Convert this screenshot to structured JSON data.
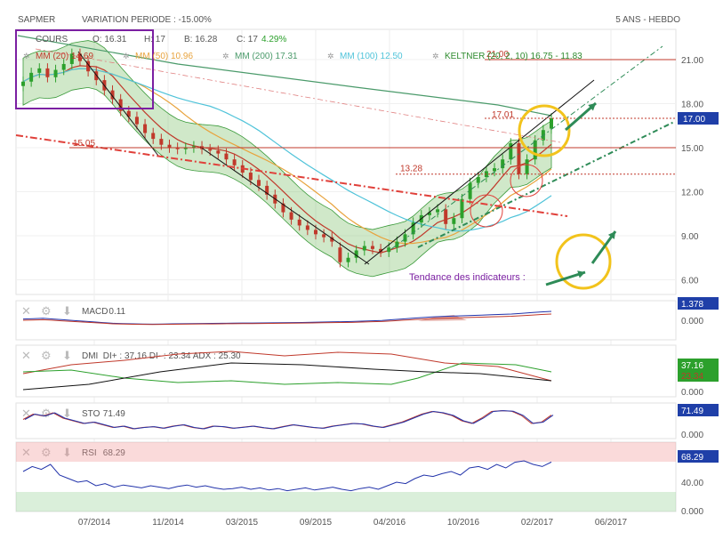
{
  "header": {
    "symbol": "SAPMER",
    "variation_label": "VARIATION PERIODE : -15.00%",
    "period_label": "5 ANS - HEBDO"
  },
  "ohlc": {
    "cours_label": "COURS",
    "open_label": "O: 16.31",
    "high_label": "H: 17",
    "low_label": "B: 16.28",
    "close_label": "C: 17",
    "change_label": "4.29%"
  },
  "legend": [
    {
      "name": "mm20",
      "label": "MM (20) 14.69",
      "color": "#c0392b"
    },
    {
      "name": "mm50",
      "label": "MM (50) 10.96",
      "color": "#e8a33d"
    },
    {
      "name": "mm200",
      "label": "MM (200) 17.31",
      "color": "#4a9a6a"
    },
    {
      "name": "mm100",
      "label": "MM (100) 12.50",
      "color": "#4fc3d9"
    },
    {
      "name": "keltner",
      "label": "KELTNER (20, 2, 10) 16.75 - 11.83",
      "color": "#2e8b2e"
    }
  ],
  "annotations": {
    "level_21": "21.00",
    "level_17": "17.01",
    "level_15": "15.05",
    "level_13": "13.28",
    "tendance": "Tendance des indicateurs :"
  },
  "colors": {
    "up_candle": "#2ca02c",
    "down_candle": "#c0392b",
    "purple_box": "#7b1fa2",
    "circle_yellow": "#f2c31c",
    "arrow_green": "#2e8b57",
    "macd_line": "#2233aa",
    "signal_line": "#c0392b",
    "rsi_line": "#2233aa",
    "dmi_plus": "#2ca02c",
    "dmi_minus": "#c0392b",
    "adx": "#111111"
  },
  "panels": {
    "macd": {
      "label": "MACD",
      "value": "0.11",
      "badge": "1.378",
      "ticks": [
        "0.000"
      ]
    },
    "dmi": {
      "label": "DMI",
      "value": "DI+ : 37.16 DI- : 23.34 ADX : 25.30",
      "badge_plus": "37.16",
      "badge_minus": "23.34",
      "ticks": [
        "0.000"
      ]
    },
    "sto": {
      "label": "STO",
      "value": "71.49",
      "badge": "71.49",
      "ticks": [
        "0.000"
      ]
    },
    "rsi": {
      "label": "RSI",
      "value": "68.29",
      "badge": "68.29",
      "ticks": [
        "40.00",
        "0.000"
      ]
    }
  },
  "chart_data": {
    "type": "candlestick",
    "x_ticks": [
      "07/2014",
      "11/2014",
      "03/2015",
      "09/2015",
      "04/2016",
      "10/2016",
      "02/2017",
      "06/2017"
    ],
    "y_ticks": [
      "21.00",
      "18.00",
      "15.00",
      "12.00",
      "9.00",
      "6.00"
    ],
    "ylim": [
      5,
      23
    ],
    "last_price_badge": "17.00",
    "close": [
      19.5,
      20.1,
      20.4,
      19.8,
      20.3,
      20.7,
      21.4,
      20.9,
      20.2,
      19.6,
      18.9,
      18.3,
      17.5,
      17.1,
      16.6,
      16.0,
      15.6,
      15.2,
      15.0,
      14.9,
      15.0,
      15.1,
      14.9,
      14.8,
      14.6,
      14.2,
      13.8,
      13.3,
      12.8,
      12.4,
      11.8,
      11.2,
      10.6,
      10.1,
      9.7,
      9.4,
      9.1,
      8.9,
      8.6,
      7.2,
      7.5,
      8.0,
      8.3,
      8.1,
      7.9,
      8.2,
      8.6,
      9.1,
      9.9,
      10.4,
      10.6,
      10.8,
      9.8,
      10.2,
      11.5,
      12.6,
      13.0,
      13.4,
      13.6,
      14.2,
      15.3,
      13.2,
      14.2,
      15.5,
      16.2,
      17.0
    ],
    "open": [
      19.2,
      19.5,
      20.1,
      20.4,
      19.8,
      20.3,
      20.7,
      21.4,
      20.9,
      20.2,
      19.6,
      18.9,
      18.3,
      17.5,
      17.1,
      16.6,
      16.0,
      15.6,
      15.2,
      15.0,
      14.9,
      15.0,
      15.1,
      14.9,
      14.8,
      14.6,
      14.2,
      13.8,
      13.3,
      12.8,
      12.4,
      11.8,
      11.2,
      10.6,
      10.1,
      9.7,
      9.4,
      9.1,
      8.9,
      8.2,
      7.2,
      7.5,
      8.0,
      8.3,
      8.1,
      7.9,
      8.2,
      8.6,
      9.1,
      9.9,
      10.4,
      10.6,
      10.8,
      9.8,
      10.2,
      11.5,
      12.6,
      13.0,
      13.4,
      13.6,
      14.2,
      15.3,
      13.2,
      14.2,
      15.5,
      16.3
    ],
    "macd": [
      0.3,
      0.35,
      0.4,
      0.3,
      0.2,
      0.1,
      0.0,
      -0.1,
      -0.2,
      -0.3,
      -0.35,
      -0.38,
      -0.4,
      -0.42,
      -0.4,
      -0.38,
      -0.36,
      -0.35,
      -0.33,
      -0.32,
      -0.3,
      -0.28,
      -0.27,
      -0.26,
      -0.25,
      -0.24,
      -0.22,
      -0.2,
      -0.18,
      -0.15,
      -0.12,
      -0.1,
      -0.08,
      -0.05,
      0.0,
      0.05,
      0.1,
      0.2,
      0.3,
      0.4,
      0.5,
      0.6,
      0.65,
      0.7,
      0.75,
      0.8,
      0.85,
      0.9,
      0.95,
      1.0,
      1.1,
      1.2,
      1.3,
      1.378
    ],
    "rsi": [
      55,
      62,
      58,
      65,
      50,
      45,
      40,
      42,
      35,
      38,
      33,
      36,
      34,
      32,
      35,
      33,
      31,
      34,
      36,
      33,
      35,
      32,
      30,
      31,
      33,
      30,
      32,
      29,
      31,
      28,
      30,
      32,
      29,
      31,
      33,
      30,
      28,
      31,
      33,
      30,
      35,
      40,
      38,
      45,
      50,
      48,
      52,
      55,
      50,
      60,
      62,
      58,
      65,
      60,
      68,
      70,
      65,
      62,
      68.29
    ],
    "sto": [
      55,
      75,
      68,
      80,
      60,
      50,
      40,
      45,
      35,
      25,
      30,
      20,
      25,
      28,
      22,
      30,
      35,
      25,
      20,
      30,
      28,
      22,
      26,
      30,
      24,
      20,
      28,
      35,
      30,
      25,
      22,
      30,
      35,
      40,
      38,
      30,
      25,
      35,
      45,
      60,
      75,
      85,
      80,
      70,
      50,
      40,
      60,
      85,
      88,
      86,
      70,
      40,
      45,
      71.49
    ]
  }
}
